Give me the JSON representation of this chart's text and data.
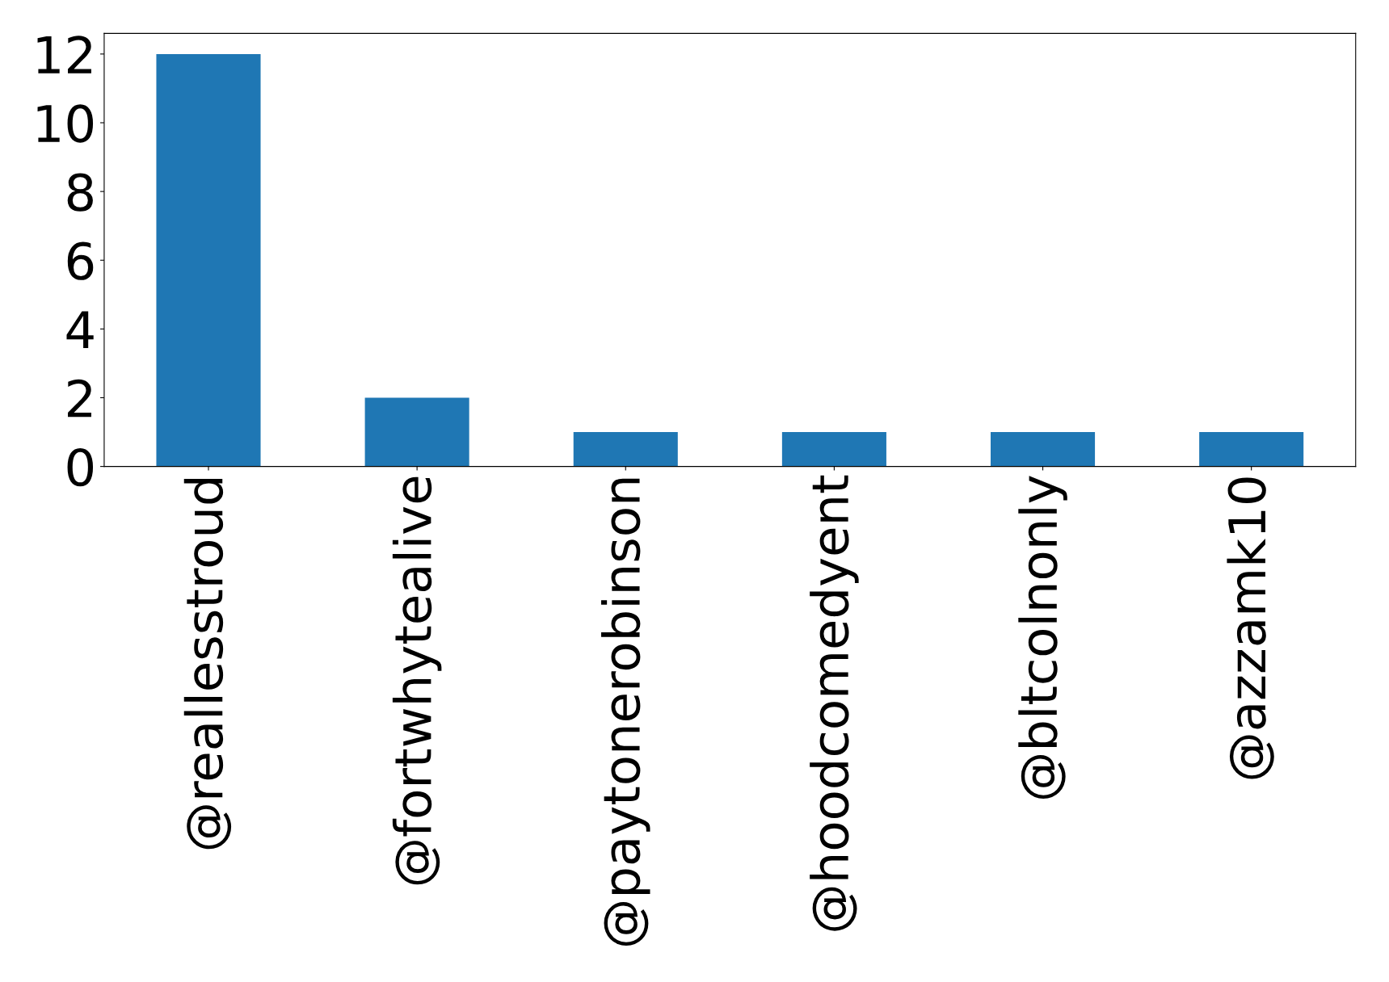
{
  "chart_data": {
    "type": "bar",
    "categories": [
      "@reallesstroud",
      "@fortwhytealive",
      "@paytonerobinson",
      "@hoodcomedyent",
      "@bltcolnonly",
      "@azzamk10"
    ],
    "values": [
      12,
      2,
      1,
      1,
      1,
      1
    ],
    "color": "#1f77b4",
    "ylim": [
      0,
      12.6
    ],
    "yticks": [
      0,
      2,
      4,
      6,
      8,
      10,
      12
    ],
    "grid": false
  }
}
